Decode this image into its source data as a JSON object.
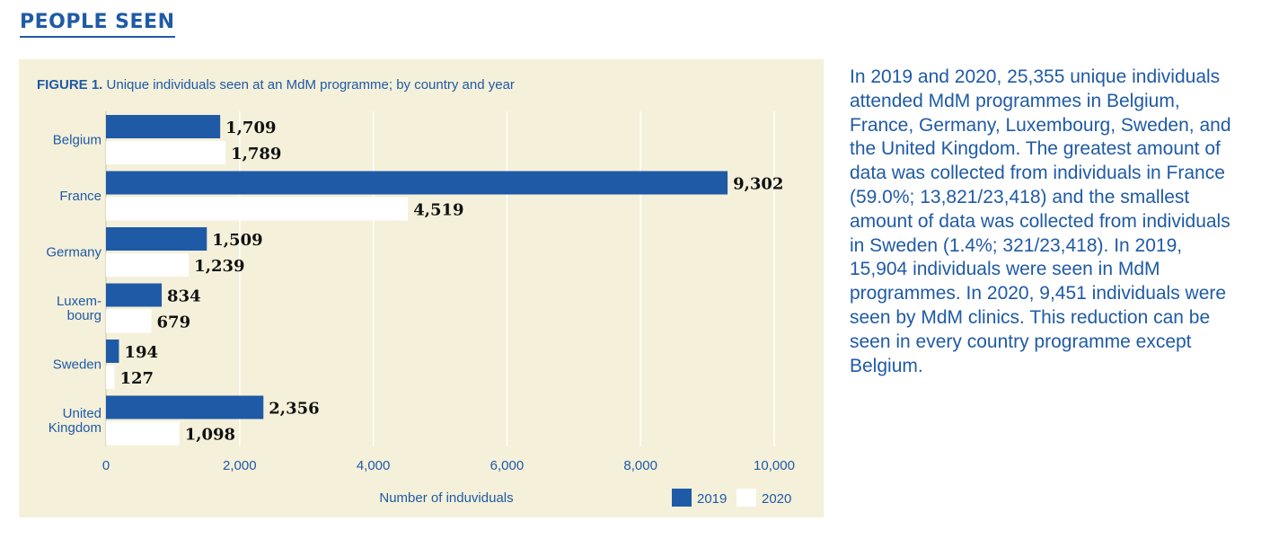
{
  "section_title": "PEOPLE SEEN",
  "figure": {
    "caption_prefix": "FIGURE 1.",
    "caption_text": " Unique individuals seen at an MdM programme; by country and year"
  },
  "body_text": "In 2019 and 2020, 25,355 unique individuals attended MdM programmes in Belgium, France, Germany, Luxembourg, Sweden, and the United Kingdom. The greatest amount of data was collected from individuals in France (59.0%; 13,821/23,418) and the smallest amount of data was collected from individuals in Sweden (1.4%; 321/23,418). In 2019, 15,904 individuals were seen in MdM programmes. In 2020, 9,451 individuals were seen by MdM clinics. This reduction can be seen in every country programme except Belgium.",
  "colors": {
    "series_2019": "#1f5aa6",
    "series_2020": "#ffffff",
    "background": "#f4f0da",
    "text": "#1f5aa6"
  },
  "chart_data": {
    "type": "bar",
    "orientation": "horizontal",
    "categories": [
      [
        "Belgium"
      ],
      [
        "France"
      ],
      [
        "Germany"
      ],
      [
        "Luxem-",
        "bourg"
      ],
      [
        "Sweden"
      ],
      [
        "United",
        "Kingdom"
      ]
    ],
    "series": [
      {
        "name": "2019",
        "values": [
          1709,
          9302,
          1509,
          834,
          194,
          2356
        ],
        "labels": [
          "1,709",
          "9,302",
          "1,509",
          "834",
          "194",
          "2,356"
        ]
      },
      {
        "name": "2020",
        "values": [
          1789,
          4519,
          1239,
          679,
          127,
          1098
        ],
        "labels": [
          "1,789",
          "4,519",
          "1,239",
          "679",
          "127",
          "1,098"
        ]
      }
    ],
    "xlim": [
      0,
      10000
    ],
    "xticks": [
      0,
      2000,
      4000,
      6000,
      8000,
      10000
    ],
    "xtick_labels": [
      "0",
      "2,000",
      "4,000",
      "6,000",
      "8,000",
      "10,000"
    ],
    "xlabel": "Number of induviduals",
    "grid": true,
    "legend": "bottom-right"
  }
}
